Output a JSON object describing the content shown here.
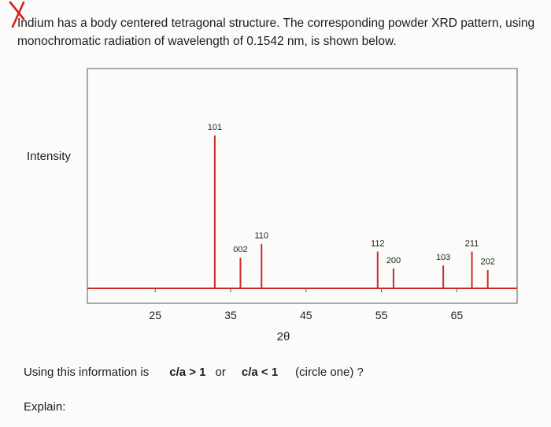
{
  "question": {
    "text": "Indium has a body centered tetragonal structure. The corresponding powder XRD pattern, using monochromatic radiation of wavelength of 0.1542 nm, is shown below."
  },
  "chart_data": {
    "type": "line",
    "ylabel": "Intensity",
    "xlabel": "2θ",
    "xticks": [
      25,
      35,
      45,
      55,
      65
    ],
    "xlim": [
      16,
      73
    ],
    "ylim": [
      0,
      100
    ],
    "peaks": [
      {
        "label": "101",
        "two_theta": 32.9,
        "intensity": 100
      },
      {
        "label": "002",
        "two_theta": 36.3,
        "intensity": 20
      },
      {
        "label": "110",
        "two_theta": 39.1,
        "intensity": 29
      },
      {
        "label": "112",
        "two_theta": 54.5,
        "intensity": 24
      },
      {
        "label": "200",
        "two_theta": 56.6,
        "intensity": 13
      },
      {
        "label": "103",
        "two_theta": 63.2,
        "intensity": 15
      },
      {
        "label": "211",
        "two_theta": 67.0,
        "intensity": 24
      },
      {
        "label": "202",
        "two_theta": 69.1,
        "intensity": 12
      }
    ],
    "line_color": "#cc2a2a",
    "label_color": "#222222"
  },
  "prompt": {
    "lead": "Using this information is",
    "option_a": "c/a > 1",
    "or": "or",
    "option_b": "c/a < 1",
    "circle": "(circle one) ?"
  },
  "explain": {
    "label": "Explain:"
  }
}
